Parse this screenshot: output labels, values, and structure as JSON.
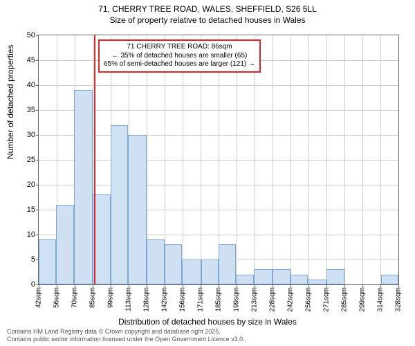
{
  "title": {
    "line1": "71, CHERRY TREE ROAD, WALES, SHEFFIELD, S26 5LL",
    "line2": "Size of property relative to detached houses in Wales"
  },
  "chart": {
    "type": "histogram",
    "ylabel": "Number of detached properties",
    "xlabel": "Distribution of detached houses by size in Wales",
    "ylim": [
      0,
      50
    ],
    "ytick_step": 5,
    "xticks": [
      "42sqm",
      "56sqm",
      "70sqm",
      "85sqm",
      "99sqm",
      "113sqm",
      "128sqm",
      "142sqm",
      "156sqm",
      "171sqm",
      "185sqm",
      "199sqm",
      "213sqm",
      "228sqm",
      "242sqm",
      "256sqm",
      "271sqm",
      "285sqm",
      "299sqm",
      "314sqm",
      "328sqm"
    ],
    "bars": [
      {
        "x0": 42,
        "x1": 56,
        "value": 9
      },
      {
        "x0": 56,
        "x1": 70,
        "value": 16
      },
      {
        "x0": 70,
        "x1": 85,
        "value": 39
      },
      {
        "x0": 85,
        "x1": 99,
        "value": 18
      },
      {
        "x0": 99,
        "x1": 113,
        "value": 32
      },
      {
        "x0": 113,
        "x1": 128,
        "value": 30
      },
      {
        "x0": 128,
        "x1": 142,
        "value": 9
      },
      {
        "x0": 142,
        "x1": 156,
        "value": 8
      },
      {
        "x0": 156,
        "x1": 171,
        "value": 5
      },
      {
        "x0": 171,
        "x1": 185,
        "value": 5
      },
      {
        "x0": 185,
        "x1": 199,
        "value": 8
      },
      {
        "x0": 199,
        "x1": 213,
        "value": 2
      },
      {
        "x0": 213,
        "x1": 228,
        "value": 3
      },
      {
        "x0": 228,
        "x1": 242,
        "value": 3
      },
      {
        "x0": 242,
        "x1": 256,
        "value": 2
      },
      {
        "x0": 256,
        "x1": 271,
        "value": 1
      },
      {
        "x0": 271,
        "x1": 285,
        "value": 3
      },
      {
        "x0": 285,
        "x1": 299,
        "value": 0
      },
      {
        "x0": 299,
        "x1": 314,
        "value": 0
      },
      {
        "x0": 314,
        "x1": 328,
        "value": 2
      }
    ],
    "xlim": [
      42,
      328
    ],
    "marker_x": 86,
    "bar_fill": "#cfe0f3",
    "bar_border": "#7ba7d1",
    "marker_color": "#d9262a",
    "grid_color": "#cccccc",
    "background": "#ffffff",
    "axis_color": "#666666"
  },
  "annotation": {
    "line1": "71 CHERRY TREE ROAD: 86sqm",
    "line2": "← 35% of detached houses are smaller (65)",
    "line3": "65% of semi-detached houses are larger (121) →"
  },
  "footer": {
    "line1": "Contains HM Land Registry data © Crown copyright and database right 2025.",
    "line2": "Contains public sector information licensed under the Open Government Licence v3.0."
  }
}
